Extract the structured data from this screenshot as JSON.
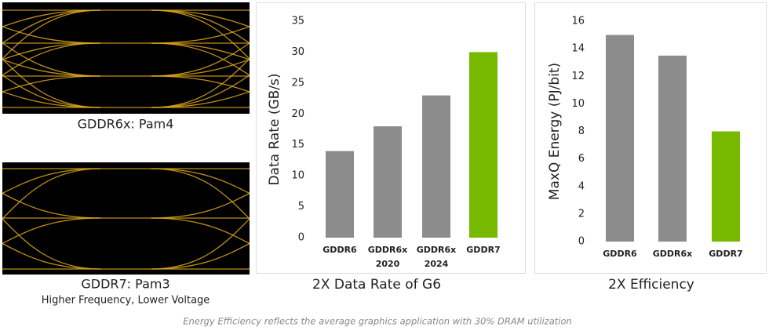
{
  "eye_diagrams": [
    {
      "label": "GDDR6x: Pam4"
    },
    {
      "label": "GDDR7: Pam3",
      "sublabel": "Higher Frequency, Lower Voltage"
    }
  ],
  "chart_data": [
    {
      "type": "bar",
      "title": "2X Data Rate of G6",
      "y_label": "Data Rate (GB/s)",
      "categories": [
        "GDDR6",
        "GDDR6x 2020",
        "GDDR6x 2024",
        "GDDR7"
      ],
      "values": [
        14,
        18,
        23,
        30
      ],
      "colors": [
        "#8c8c8c",
        "#8c8c8c",
        "#8c8c8c",
        "#76b900"
      ],
      "ylim": [
        0,
        35
      ],
      "yticks": [
        0,
        5,
        10,
        15,
        20,
        25,
        30,
        35
      ],
      "grid": false
    },
    {
      "type": "bar",
      "title": "2X Efficiency",
      "y_label": "MaxQ Energy (PJ/bit)",
      "categories": [
        "GDDR6",
        "GDDR6x",
        "GDDR7"
      ],
      "values": [
        15,
        13.5,
        8
      ],
      "colors": [
        "#8c8c8c",
        "#8c8c8c",
        "#76b900"
      ],
      "ylim": [
        0,
        16
      ],
      "yticks": [
        0,
        2,
        4,
        6,
        8,
        10,
        12,
        14,
        16
      ],
      "grid": false
    }
  ],
  "footnote": "Energy Efficiency reflects the average graphics application with 30% DRAM utilization"
}
